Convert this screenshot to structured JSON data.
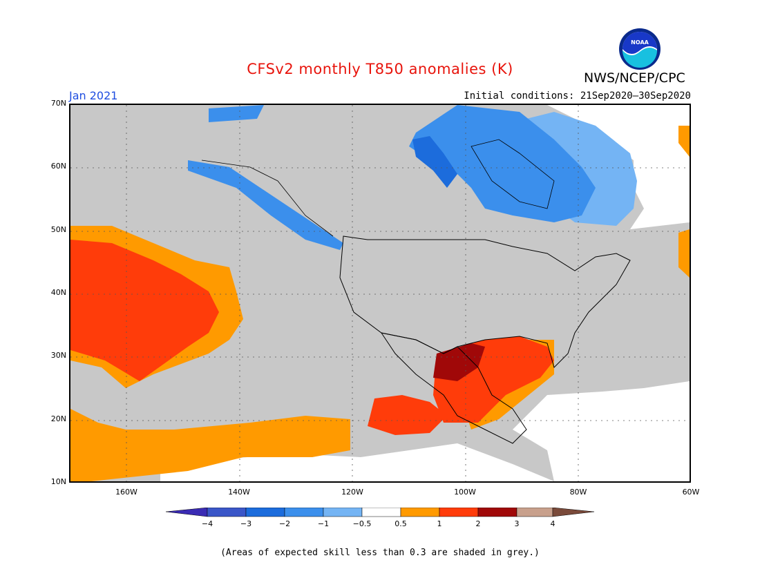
{
  "header": {
    "title": "CFSv2 monthly T850 anomalies (K)",
    "agency": "NWS/NCEP/CPC",
    "logo_text": "NOAA",
    "month": "Jan 2021",
    "initial_conditions": "Initial conditions: 21Sep2020–30Sep2020"
  },
  "map": {
    "lat_labels": [
      "70N",
      "60N",
      "50N",
      "40N",
      "30N",
      "20N",
      "10N"
    ],
    "lon_labels": [
      "160W",
      "140W",
      "120W",
      "100W",
      "80W",
      "60W"
    ],
    "background_color": "#c8c8c8"
  },
  "legend": {
    "ticks": [
      "−4",
      "−3",
      "−2",
      "−1",
      "−0.5",
      "0.5",
      "1",
      "2",
      "3",
      "4"
    ],
    "colors": [
      "#3a2bb4",
      "#3a56c8",
      "#1c6cdc",
      "#3b8fec",
      "#74b4f4",
      "#ffffff",
      "#ff9a00",
      "#ff3c0a",
      "#a00808",
      "#c8a08c",
      "#7a4a3a"
    ]
  },
  "footer": {
    "note": "(Areas of expected skill less than 0.3 are shaded in grey.)"
  }
}
